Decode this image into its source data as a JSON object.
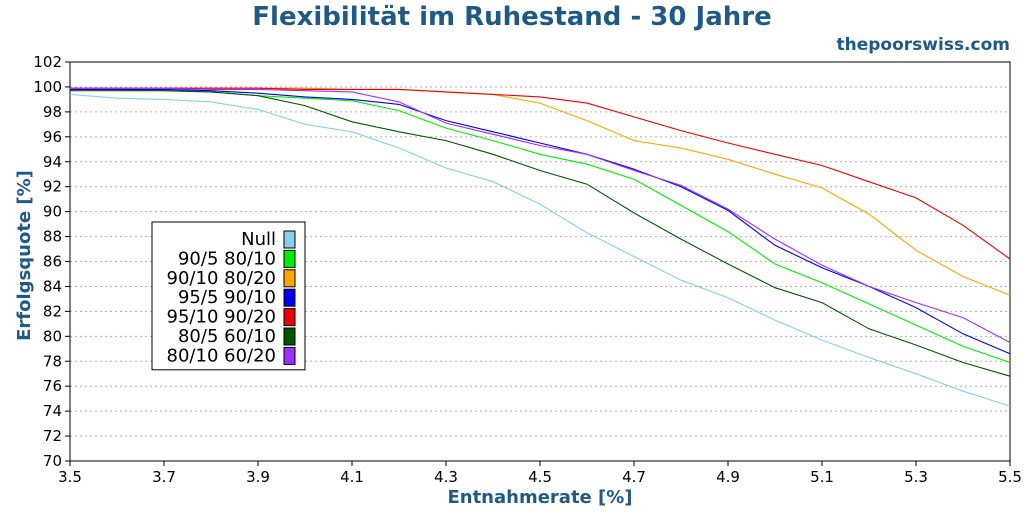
{
  "header": {
    "title": "Flexibilität im Ruhestand - 30 Jahre",
    "site": "thepoorswiss.com"
  },
  "chart_data": {
    "type": "line",
    "title": "Flexibilität im Ruhestand - 30 Jahre",
    "xlabel": "Entnahmerate [%]",
    "ylabel": "Erfolgsquote [%]",
    "xlim": [
      3.5,
      5.5
    ],
    "ylim": [
      70,
      102
    ],
    "xticks": [
      "3.5",
      "3.7",
      "3.9",
      "4.1",
      "4.3",
      "4.5",
      "4.7",
      "4.9",
      "5.1",
      "5.3",
      "5.5"
    ],
    "yticks": [
      "70",
      "72",
      "74",
      "76",
      "78",
      "80",
      "82",
      "84",
      "86",
      "88",
      "90",
      "92",
      "94",
      "96",
      "98",
      "100",
      "102"
    ],
    "grid": true,
    "legend_position": "left-middle",
    "x": [
      3.5,
      3.6,
      3.7,
      3.8,
      3.9,
      4.0,
      4.1,
      4.2,
      4.3,
      4.4,
      4.5,
      4.6,
      4.7,
      4.8,
      4.9,
      5.0,
      5.1,
      5.2,
      5.3,
      5.4,
      5.5
    ],
    "series": [
      {
        "name": "Null",
        "color": "#87ceeb",
        "values": [
          99.4,
          99.1,
          99.0,
          98.8,
          98.2,
          97.0,
          96.4,
          95.1,
          93.5,
          92.4,
          90.6,
          88.3,
          86.4,
          84.5,
          83.1,
          81.3,
          79.7,
          78.3,
          77.0,
          75.6,
          74.4
        ]
      },
      {
        "name": "90/5 80/10",
        "color": "#00ee00",
        "values": [
          99.8,
          99.8,
          99.7,
          99.6,
          99.3,
          99.1,
          98.9,
          98.1,
          96.7,
          95.7,
          94.6,
          93.8,
          92.6,
          90.5,
          88.4,
          85.8,
          84.3,
          82.6,
          80.9,
          79.2,
          77.9
        ]
      },
      {
        "name": "90/10 80/20",
        "color": "#ffa500",
        "values": [
          99.9,
          99.9,
          99.9,
          99.9,
          99.9,
          99.9,
          99.8,
          99.8,
          99.6,
          99.4,
          98.7,
          97.3,
          95.7,
          95.1,
          94.2,
          93.0,
          91.9,
          89.8,
          86.9,
          84.8,
          83.3
        ]
      },
      {
        "name": "95/5 90/10",
        "color": "#0000ee",
        "values": [
          99.8,
          99.8,
          99.8,
          99.7,
          99.5,
          99.2,
          99.0,
          98.6,
          97.3,
          96.4,
          95.5,
          94.6,
          93.4,
          92.0,
          90.1,
          87.3,
          85.5,
          84.0,
          82.3,
          80.2,
          78.6
        ]
      },
      {
        "name": "95/10 90/20",
        "color": "#ee0000",
        "values": [
          99.9,
          99.9,
          99.9,
          99.9,
          99.9,
          99.8,
          99.8,
          99.8,
          99.6,
          99.4,
          99.2,
          98.7,
          97.6,
          96.5,
          95.5,
          94.6,
          93.7,
          92.4,
          91.1,
          88.9,
          86.2
        ]
      },
      {
        "name": "80/5 60/10",
        "color": "#005500",
        "values": [
          99.7,
          99.7,
          99.7,
          99.6,
          99.3,
          98.5,
          97.2,
          96.4,
          95.7,
          94.6,
          93.3,
          92.2,
          89.9,
          87.8,
          85.8,
          83.9,
          82.7,
          80.6,
          79.3,
          77.9,
          76.8
        ]
      },
      {
        "name": "80/10 60/20",
        "color": "#9b30ff",
        "values": [
          99.9,
          99.9,
          99.9,
          99.8,
          99.8,
          99.7,
          99.6,
          98.8,
          97.1,
          96.2,
          95.3,
          94.6,
          93.3,
          92.1,
          90.2,
          87.8,
          85.7,
          84.0,
          82.7,
          81.5,
          79.5
        ]
      }
    ]
  }
}
